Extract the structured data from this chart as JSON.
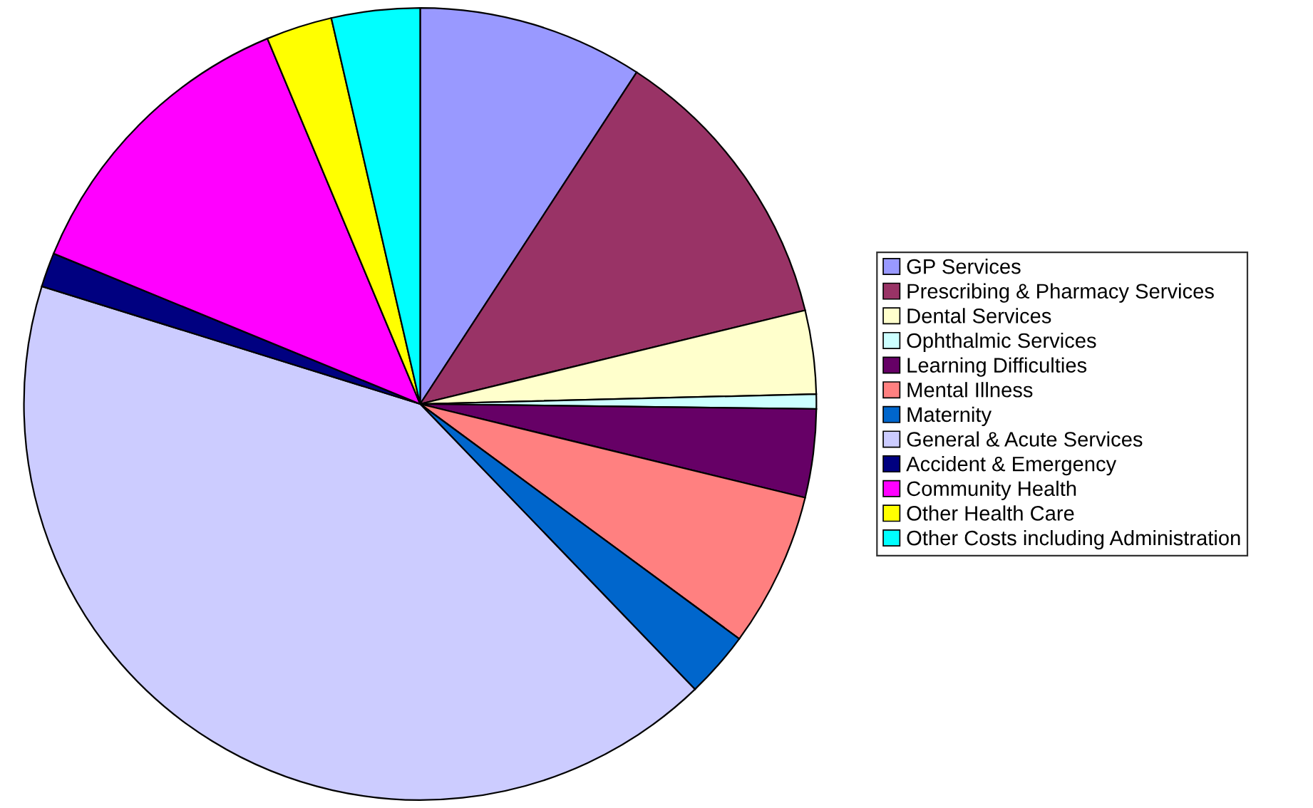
{
  "chart_data": {
    "type": "pie",
    "categories": [
      "GP Services",
      "Prescribing & Pharmacy Services",
      "Dental Services",
      "Ophthalmic Services",
      "Learning Difficulties",
      "Mental Illness",
      "Maternity",
      "General & Acute Services",
      "Accident & Emergency",
      "Community Health",
      "Other Health Care",
      "Other Costs including Administration"
    ],
    "values": [
      9.2,
      12.0,
      3.4,
      0.6,
      3.6,
      6.3,
      2.7,
      42.0,
      1.4,
      12.5,
      2.7,
      3.6
    ],
    "colors": [
      "#9999ff",
      "#993366",
      "#ffffcc",
      "#ccffff",
      "#660066",
      "#ff8080",
      "#0066cc",
      "#ccccff",
      "#000080",
      "#ff00ff",
      "#ffff00",
      "#00ffff"
    ],
    "legend": "right"
  }
}
